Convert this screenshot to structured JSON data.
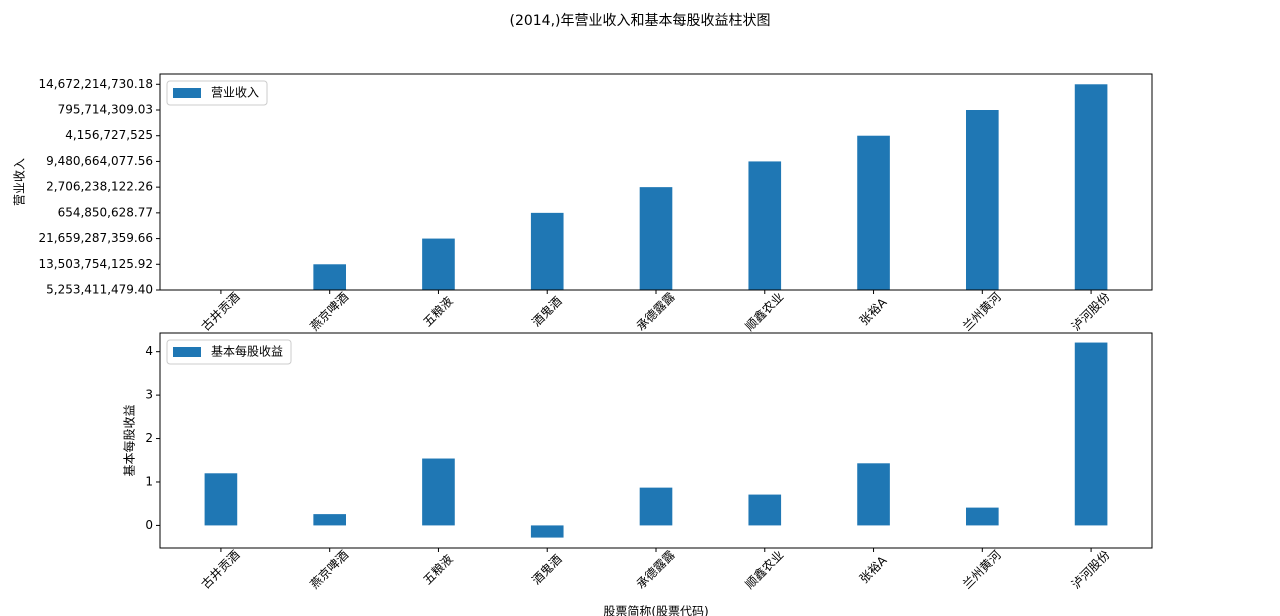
{
  "title": "(2014,)年营业收入和基本每股收益柱状图",
  "chart_data": [
    {
      "type": "bar",
      "ylabel": "营业收入",
      "categories": [
        "古井贡酒",
        "燕京啤酒",
        "五粮液",
        "酒鬼酒",
        "承德露露",
        "顺鑫农业",
        "张裕A",
        "兰州黄河",
        "泸河股份"
      ],
      "series": [
        {
          "name": "营业收入",
          "color": "#1f77b4",
          "values": [
            0,
            1,
            2,
            3,
            4,
            5,
            6,
            7,
            8
          ]
        }
      ],
      "ylim": [
        0,
        8.4
      ],
      "yticks": [
        {
          "value": 0,
          "label": "5,253,411,479.40"
        },
        {
          "value": 1,
          "label": "13,503,754,125.92"
        },
        {
          "value": 2,
          "label": "21,659,287,359.66"
        },
        {
          "value": 3,
          "label": "654,850,628.77"
        },
        {
          "value": 4,
          "label": "2,706,238,122.26"
        },
        {
          "value": 5,
          "label": "9,480,664,077.56"
        },
        {
          "value": 6,
          "label": "4,156,727,525"
        },
        {
          "value": 7,
          "label": "795,714,309.03"
        },
        {
          "value": 8,
          "label": "14,672,214,730.18"
        }
      ],
      "legend": "upper left"
    },
    {
      "type": "bar",
      "ylabel": "基本每股收益",
      "xlabel": "股票简称(股票代码)",
      "categories": [
        "古井贡酒",
        "燕京啤酒",
        "五粮液",
        "酒鬼酒",
        "承德露露",
        "顺鑫农业",
        "张裕A",
        "兰州黄河",
        "泸河股份"
      ],
      "series": [
        {
          "name": "基本每股收益",
          "color": "#1f77b4",
          "values": [
            1.2,
            0.26,
            1.54,
            -0.28,
            0.87,
            0.71,
            1.43,
            0.41,
            4.21
          ]
        }
      ],
      "ylim": [
        -0.52,
        4.43
      ],
      "yticks": [
        0,
        1,
        2,
        3,
        4
      ],
      "legend": "upper left"
    }
  ]
}
